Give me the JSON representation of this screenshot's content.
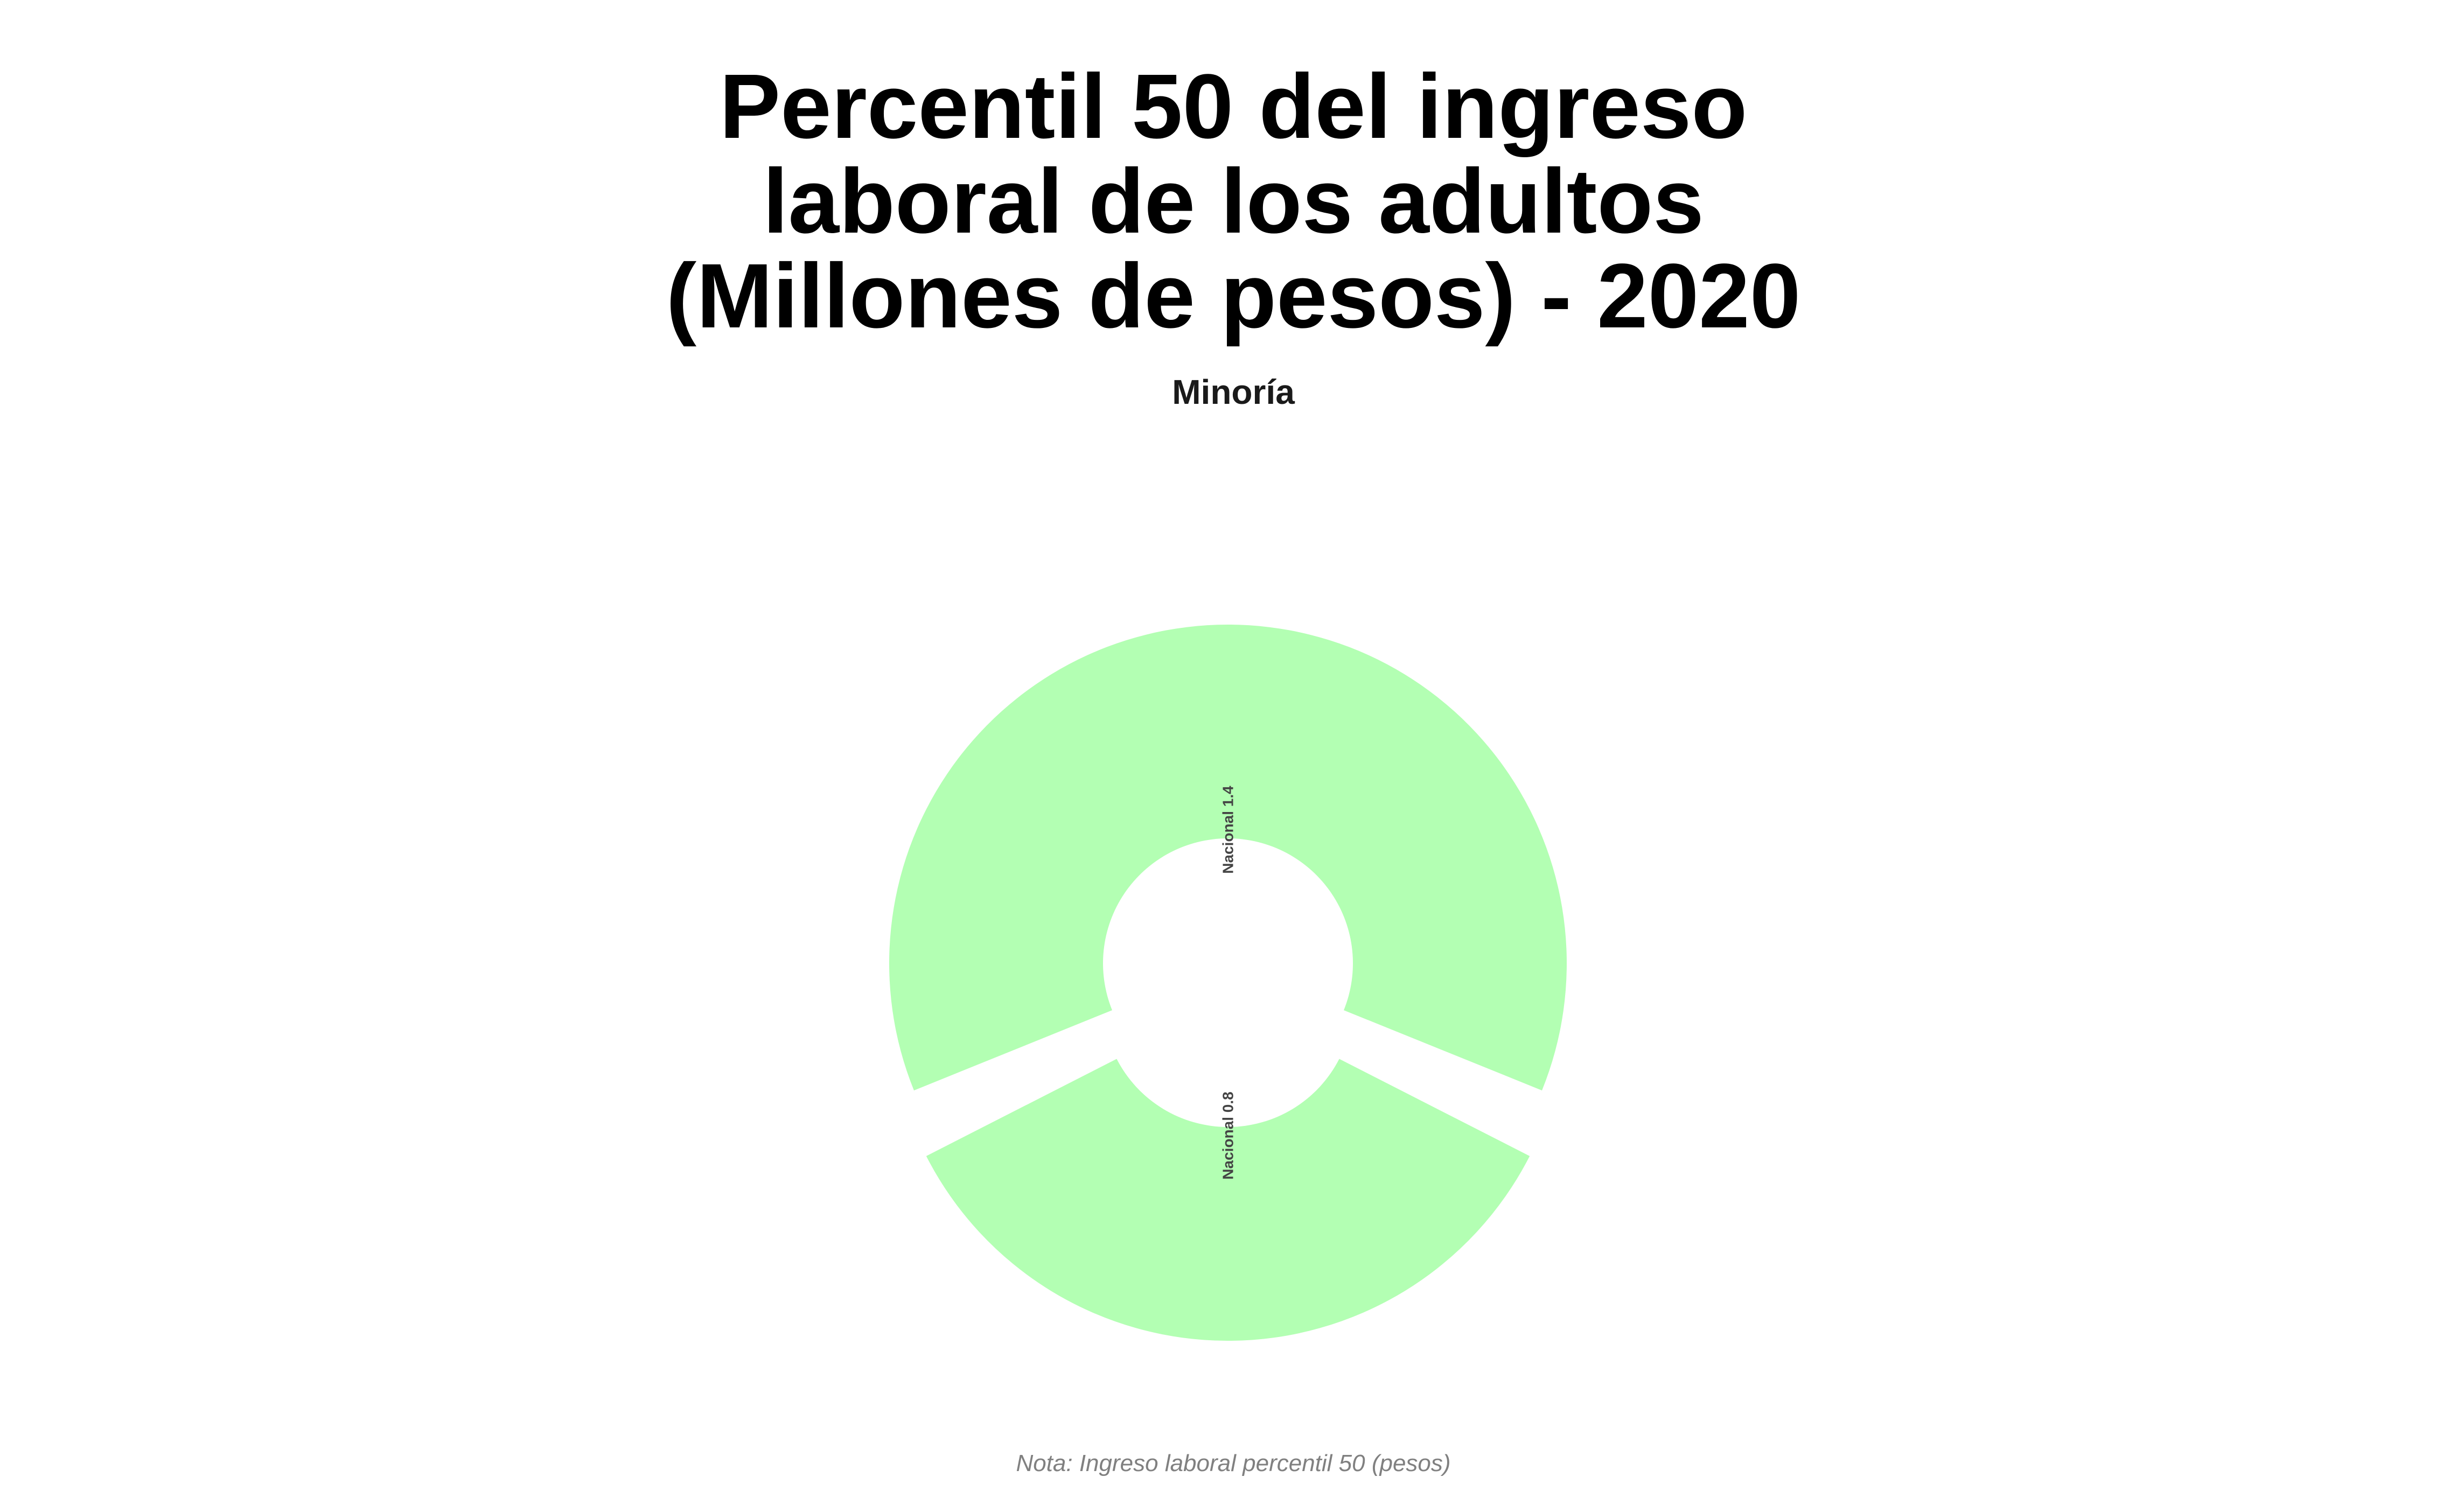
{
  "chart_data": {
    "type": "pie",
    "title_lines": [
      "Percentil 50 del ingreso",
      "laboral de los adultos",
      "(Millones de pesos) - 2020"
    ],
    "subtitle": "Minoría",
    "note": "Nota: Ingreso laboral percentil 50 (pesos)",
    "slices": [
      {
        "label": "Nacional 1.4",
        "value": 1.4,
        "color": "#b3ffb3"
      },
      {
        "label": "Nacional 0.8",
        "value": 0.8,
        "color": "#b3ffb3"
      }
    ]
  }
}
